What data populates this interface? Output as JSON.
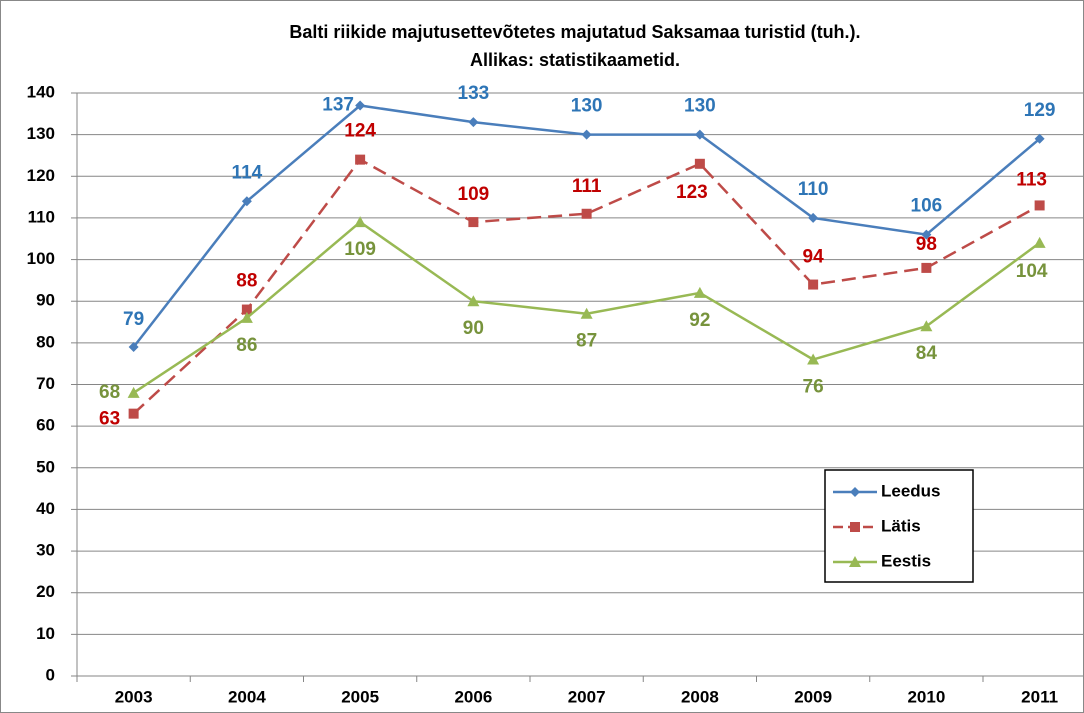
{
  "chart_data": {
    "type": "line",
    "title": [
      "Balti riikide majutusettevõtetes majutatud Saksamaa turistid (tuh.).",
      "Allikas: statistikaametid."
    ],
    "categories": [
      "2003",
      "2004",
      "2005",
      "2006",
      "2007",
      "2008",
      "2009",
      "2010",
      "2011"
    ],
    "series": [
      {
        "name": "Leedus",
        "color": "#4a7ebb",
        "label_color": "#2e75b6",
        "marker": "diamond",
        "dash": false,
        "values": [
          79,
          114,
          137,
          133,
          130,
          130,
          110,
          106,
          129
        ]
      },
      {
        "name": "Lätis",
        "color": "#be4b48",
        "label_color": "#c00000",
        "marker": "square",
        "dash": true,
        "values": [
          63,
          88,
          124,
          109,
          111,
          123,
          94,
          98,
          113
        ]
      },
      {
        "name": "Eestis",
        "color": "#98b954",
        "label_color": "#77933c",
        "marker": "triangle",
        "dash": false,
        "values": [
          68,
          86,
          109,
          90,
          87,
          92,
          76,
          84,
          104
        ]
      }
    ],
    "ylim": [
      0,
      140
    ],
    "yticks": [
      0,
      10,
      20,
      30,
      40,
      50,
      60,
      70,
      80,
      90,
      100,
      110,
      120,
      130,
      140
    ],
    "grid": true,
    "legend": "lower right"
  }
}
